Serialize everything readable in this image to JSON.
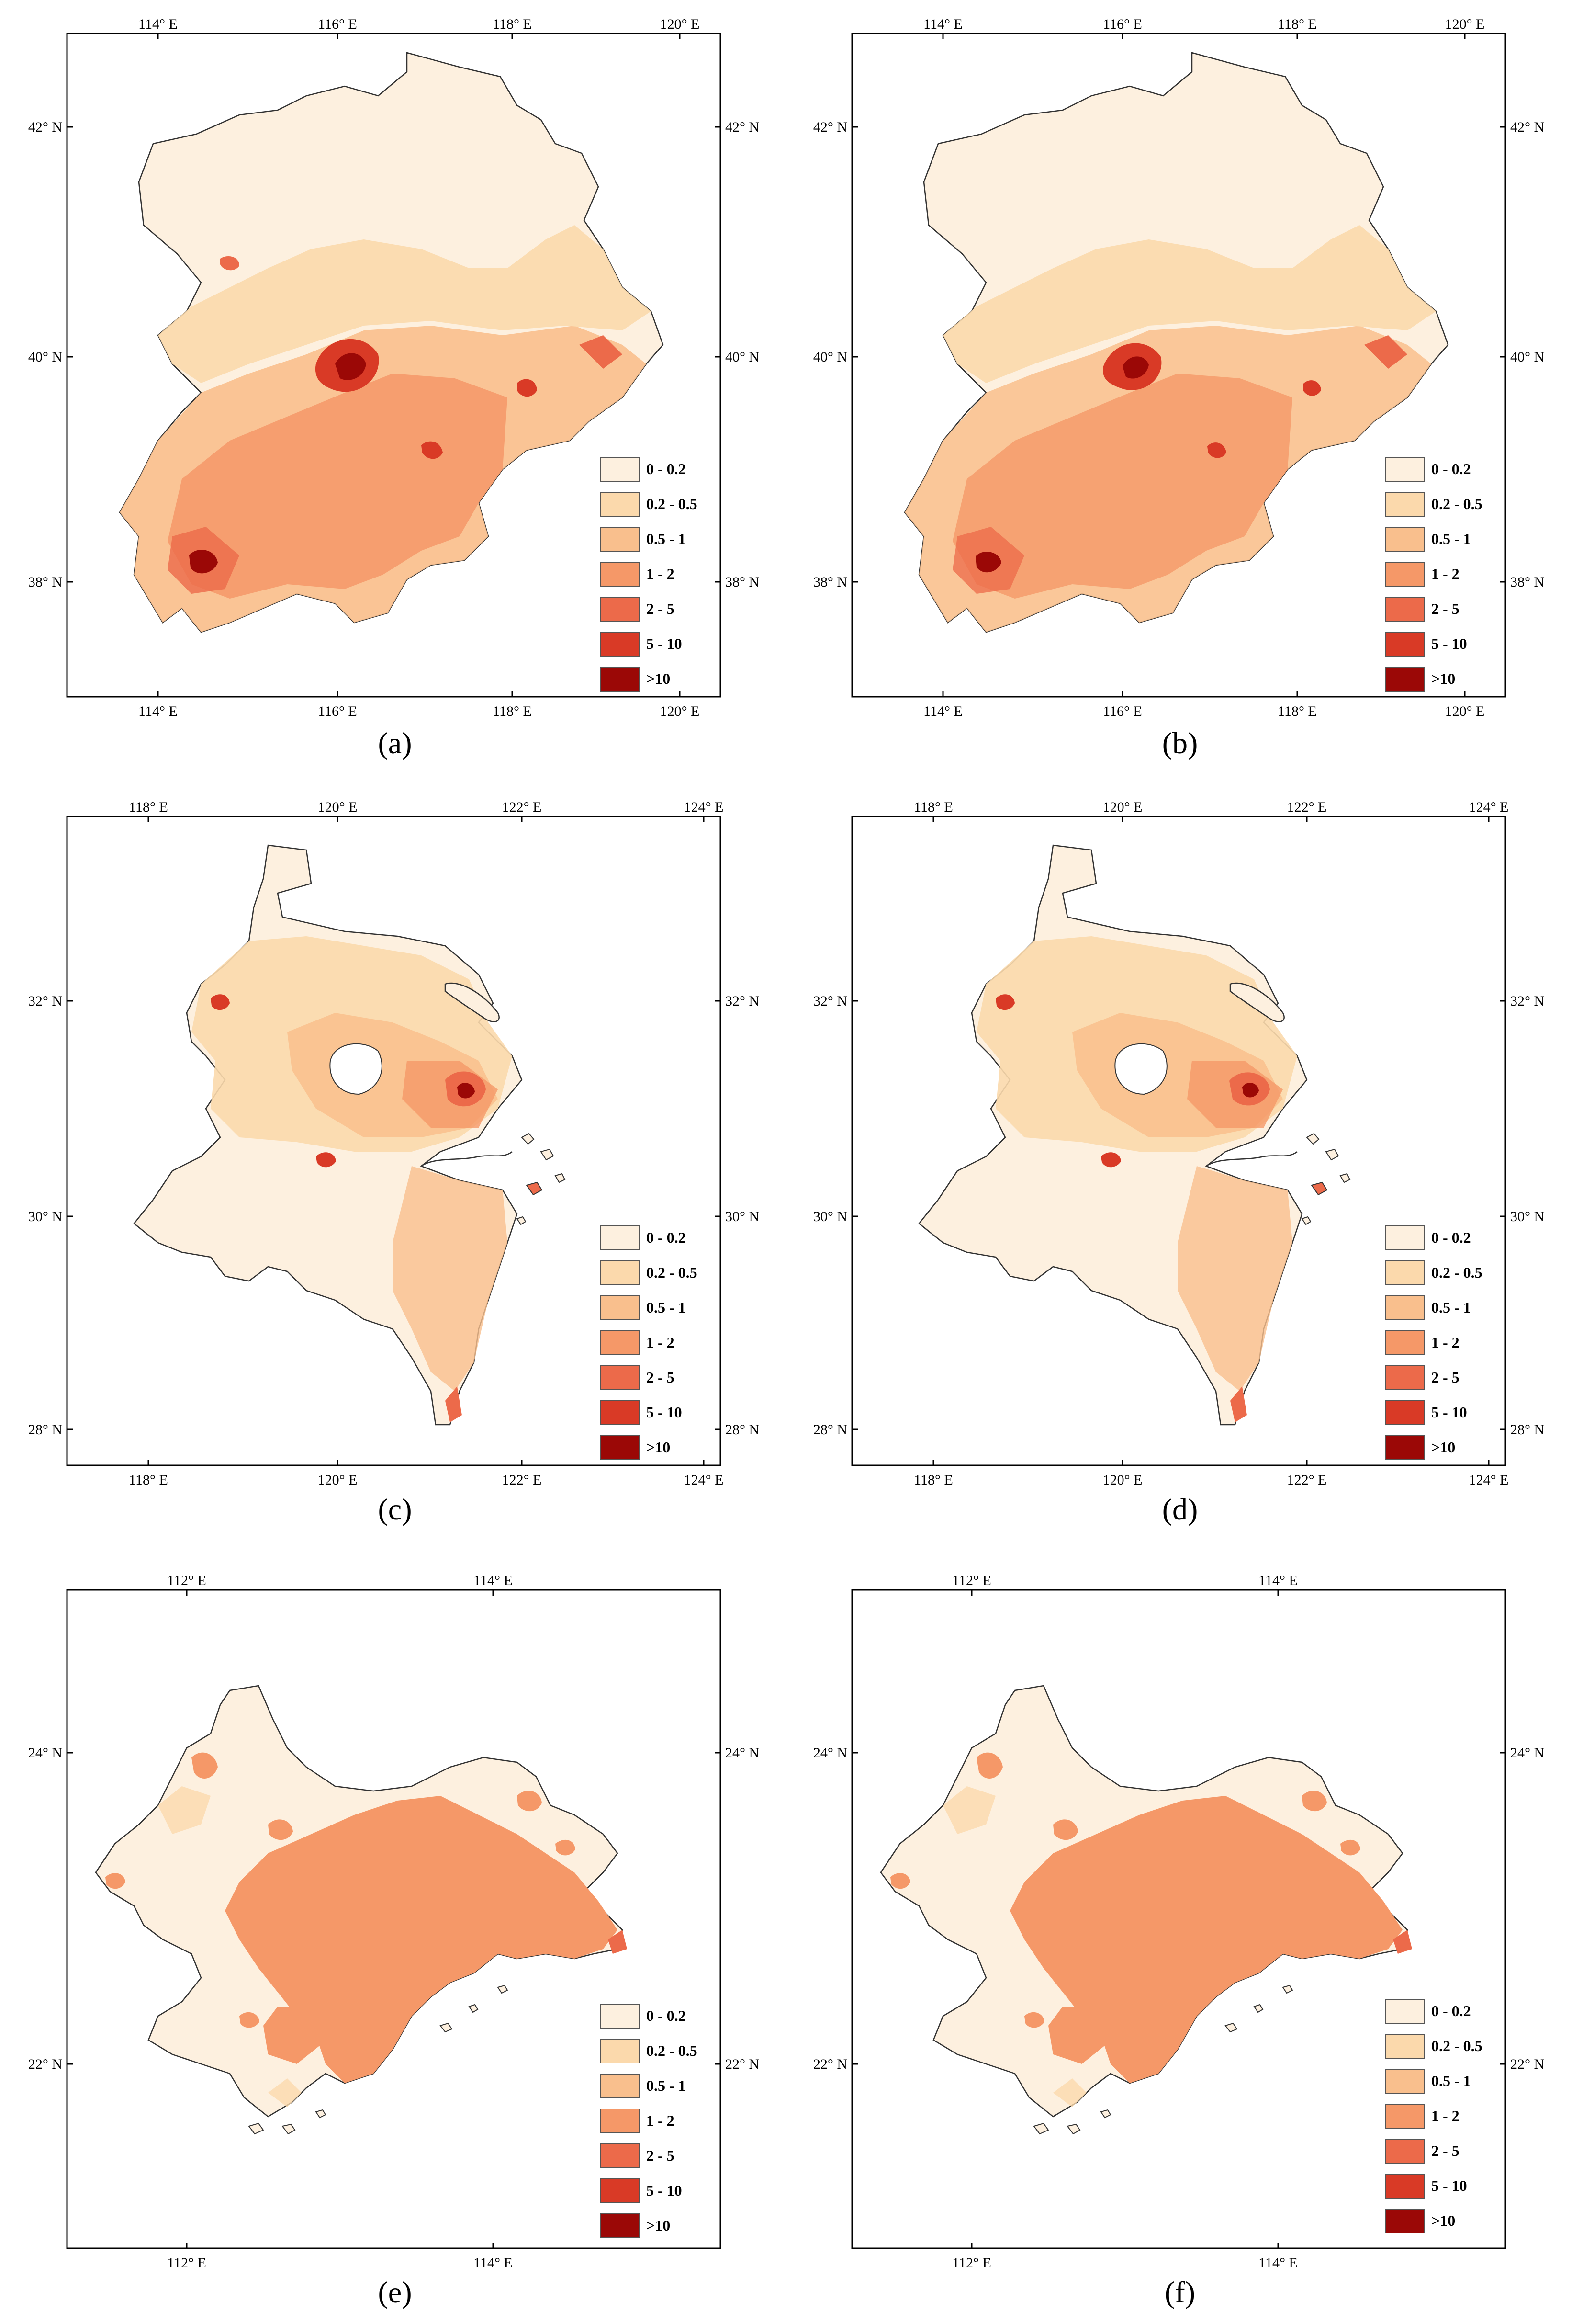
{
  "legend": {
    "classes": [
      {
        "label": "0 - 0.2",
        "color": "#fdf0df"
      },
      {
        "label": "0.2 - 0.5",
        "color": "#fbd9ac"
      },
      {
        "label": "0.5 - 1",
        "color": "#f9bf8d"
      },
      {
        "label": "1 - 2",
        "color": "#f59868"
      },
      {
        "label": "2 - 5",
        "color": "#ec6a4a"
      },
      {
        "label": "5 - 10",
        "color": "#d93a26"
      },
      {
        "label": ">10",
        "color": "#9b0806"
      }
    ]
  },
  "panels": [
    {
      "id": "a",
      "caption": "(a)",
      "lon_ticks": [
        "114° E",
        "116° E",
        "118° E",
        "120° E"
      ],
      "lat_ticks": [
        "42° N",
        "40° N",
        "38° N"
      ]
    },
    {
      "id": "b",
      "caption": "(b)",
      "lon_ticks": [
        "114° E",
        "116° E",
        "118° E",
        "120° E"
      ],
      "lat_ticks": [
        "42° N",
        "40° N",
        "38° N"
      ]
    },
    {
      "id": "c",
      "caption": "(c)",
      "lon_ticks": [
        "118° E",
        "120° E",
        "122° E",
        "124° E"
      ],
      "lat_ticks": [
        "32° N",
        "30° N",
        "28° N"
      ]
    },
    {
      "id": "d",
      "caption": "(d)",
      "lon_ticks": [
        "118° E",
        "120° E",
        "122° E",
        "124° E"
      ],
      "lat_ticks": [
        "32° N",
        "30° N",
        "28° N"
      ]
    },
    {
      "id": "e",
      "caption": "(e)",
      "lon_ticks": [
        "112° E",
        "114° E"
      ],
      "lat_ticks": [
        "24° N",
        "22° N"
      ]
    },
    {
      "id": "f",
      "caption": "(f)",
      "lon_ticks": [
        "112° E",
        "114° E"
      ],
      "lat_ticks": [
        "24° N",
        "22° N"
      ]
    }
  ]
}
